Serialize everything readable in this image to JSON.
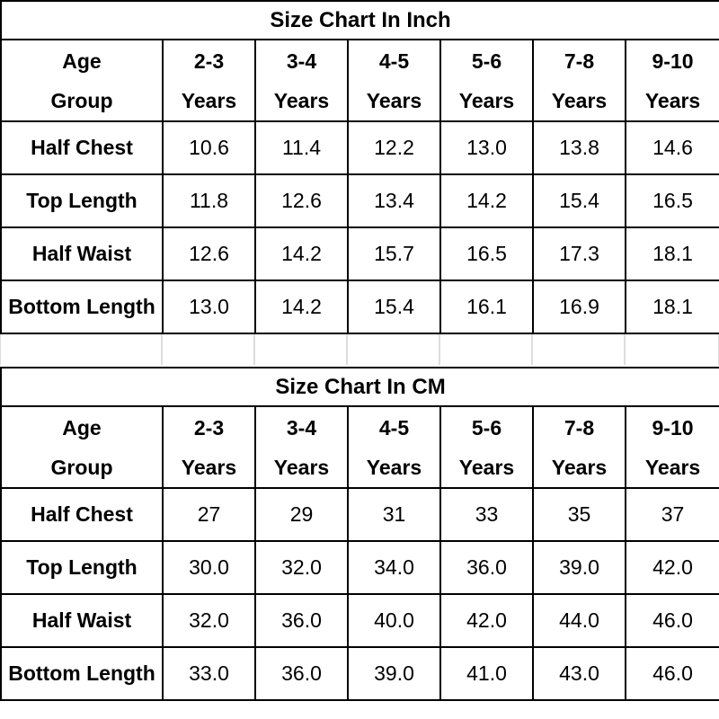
{
  "tables": [
    {
      "title": "Size Chart In Inch",
      "header": [
        "Age Group",
        "2-3 Years",
        "3-4 Years",
        "4-5 Years",
        "5-6 Years",
        "7-8 Years",
        "9-10 Years"
      ],
      "rows": [
        [
          "Half Chest",
          "10.6",
          "11.4",
          "12.2",
          "13.0",
          "13.8",
          "14.6"
        ],
        [
          "Top Length",
          "11.8",
          "12.6",
          "13.4",
          "14.2",
          "15.4",
          "16.5"
        ],
        [
          "Half Waist",
          "12.6",
          "14.2",
          "15.7",
          "16.5",
          "17.3",
          "18.1"
        ],
        [
          "Bottom Length",
          "13.0",
          "14.2",
          "15.4",
          "16.1",
          "16.9",
          "18.1"
        ]
      ]
    },
    {
      "title": "Size Chart In CM",
      "header": [
        "Age Group",
        "2-3 Years",
        "3-4 Years",
        "4-5 Years",
        "5-6 Years",
        "7-8 Years",
        "9-10 Years"
      ],
      "rows": [
        [
          "Half Chest",
          "27",
          "29",
          "31",
          "33",
          "35",
          "37"
        ],
        [
          "Top Length",
          "30.0",
          "32.0",
          "34.0",
          "36.0",
          "39.0",
          "42.0"
        ],
        [
          "Half Waist",
          "32.0",
          "36.0",
          "40.0",
          "42.0",
          "44.0",
          "46.0"
        ],
        [
          "Bottom Length",
          "33.0",
          "36.0",
          "39.0",
          "41.0",
          "43.0",
          "46.0"
        ]
      ]
    }
  ]
}
